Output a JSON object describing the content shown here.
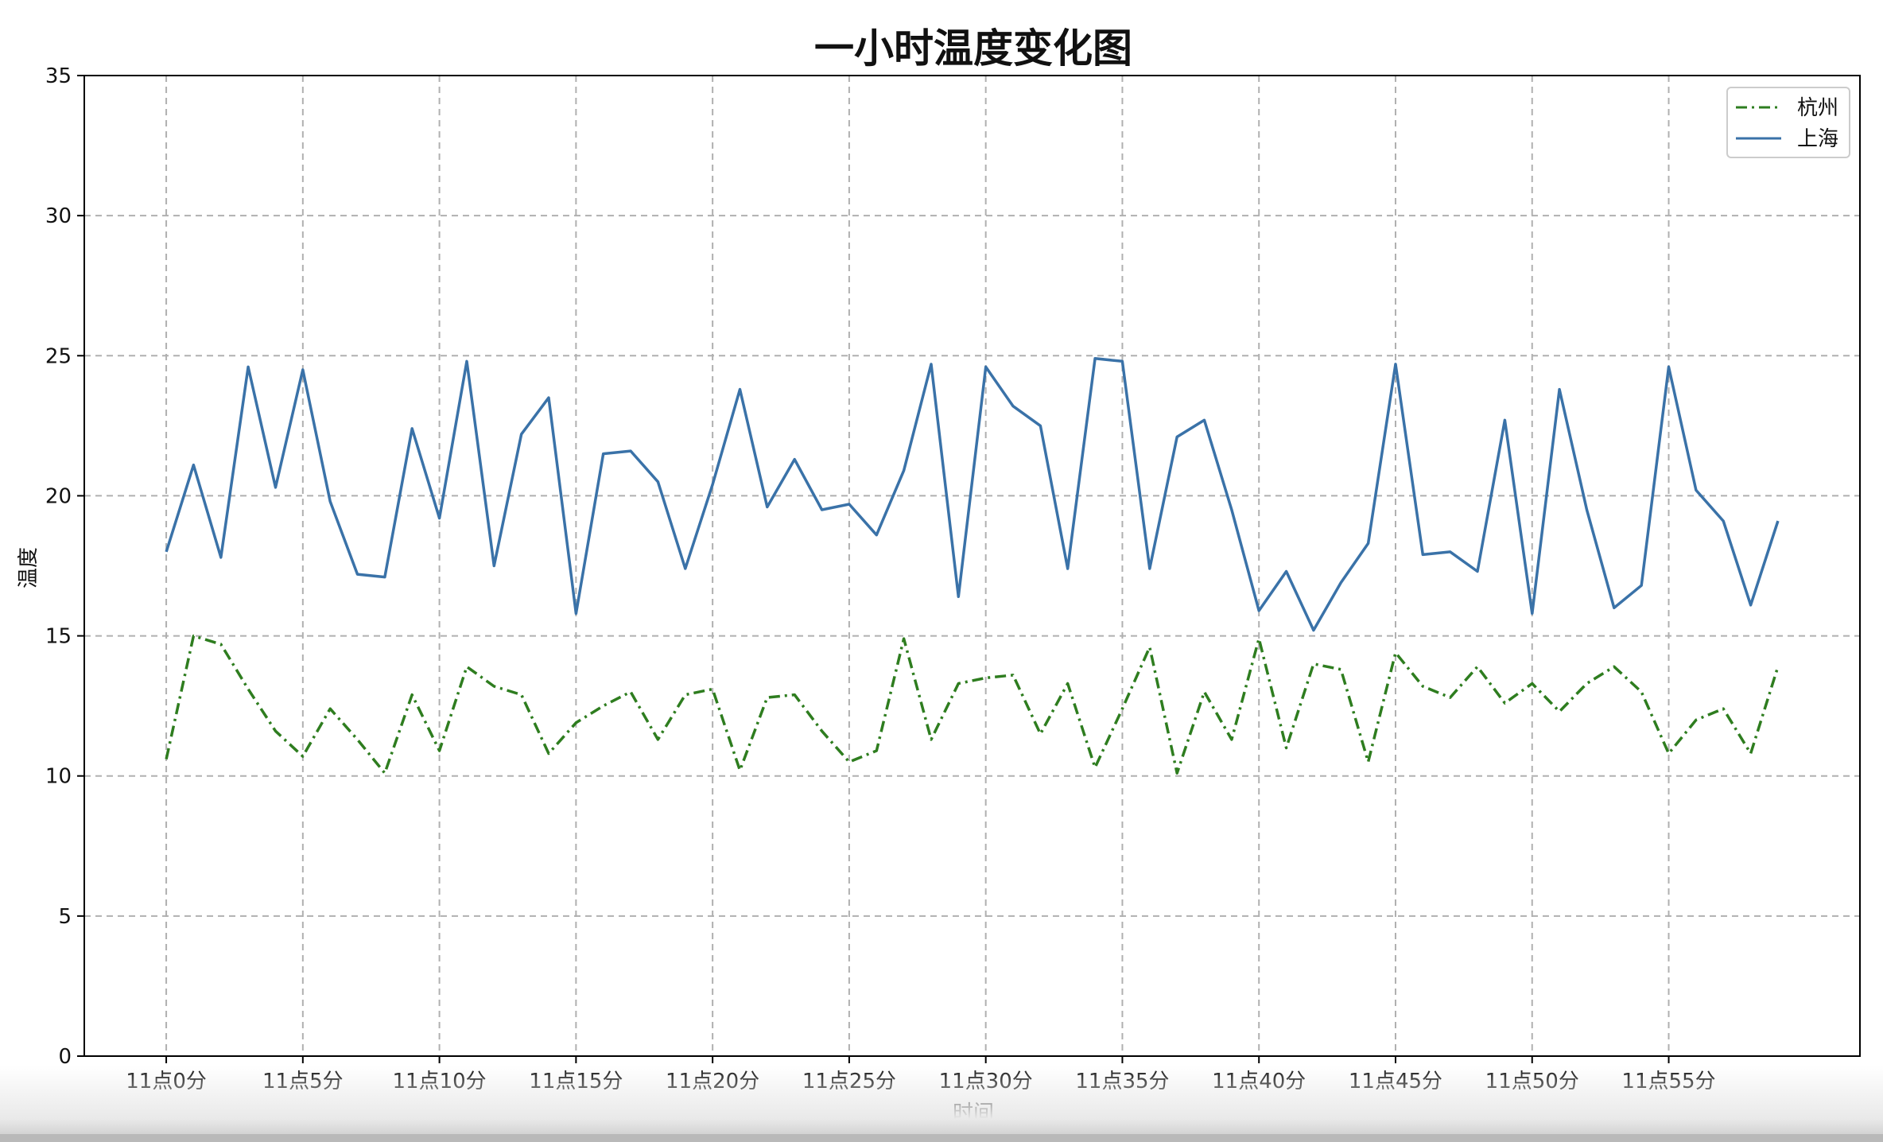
{
  "chart_data": {
    "type": "line",
    "title": "一小时温度变化图",
    "xlabel": "时间",
    "ylabel": "温度",
    "ylim": [
      0,
      35
    ],
    "yticks": [
      0,
      5,
      10,
      15,
      20,
      25,
      30,
      35
    ],
    "xlim": [
      -3,
      62
    ],
    "x": [
      0,
      1,
      2,
      3,
      4,
      5,
      6,
      7,
      8,
      9,
      10,
      11,
      12,
      13,
      14,
      15,
      16,
      17,
      18,
      19,
      20,
      21,
      22,
      23,
      24,
      25,
      26,
      27,
      28,
      29,
      30,
      31,
      32,
      33,
      34,
      35,
      36,
      37,
      38,
      39,
      40,
      41,
      42,
      43,
      44,
      45,
      46,
      47,
      48,
      49,
      50,
      51,
      52,
      53,
      54,
      55,
      56,
      57,
      58,
      59
    ],
    "xticks": [
      0,
      5,
      10,
      15,
      20,
      25,
      30,
      35,
      40,
      45,
      50,
      55
    ],
    "xtick_labels": [
      "11点0分",
      "11点5分",
      "11点10分",
      "11点15分",
      "11点20分",
      "11点25分",
      "11点30分",
      "11点35分",
      "11点40分",
      "11点45分",
      "11点50分",
      "11点55分"
    ],
    "grid": true,
    "legend": "top-right",
    "series": [
      {
        "name": "杭州",
        "color": "#2e7d1f",
        "linestyle": "dashdot",
        "values": [
          10.6,
          15.0,
          14.7,
          13.1,
          11.6,
          10.7,
          12.4,
          11.3,
          10.1,
          12.9,
          10.9,
          13.9,
          13.2,
          12.9,
          10.8,
          11.9,
          12.5,
          13.0,
          11.3,
          12.9,
          13.1,
          10.2,
          12.8,
          12.9,
          11.6,
          10.5,
          10.9,
          14.9,
          11.3,
          13.3,
          13.5,
          13.6,
          11.5,
          13.3,
          10.3,
          12.4,
          14.6,
          10.1,
          13.0,
          11.3,
          14.9,
          11.0,
          14.0,
          13.8,
          10.5,
          14.4,
          13.2,
          12.8,
          13.9,
          12.6,
          13.3,
          12.3,
          13.3,
          13.9,
          13.0,
          10.8,
          12.0,
          12.4,
          10.8,
          13.9
        ]
      },
      {
        "name": "上海",
        "color": "#3a72a8",
        "linestyle": "solid",
        "values": [
          18.0,
          21.1,
          17.8,
          24.6,
          20.3,
          24.5,
          19.8,
          17.2,
          17.1,
          22.4,
          19.2,
          24.8,
          17.5,
          22.2,
          23.5,
          15.8,
          21.5,
          21.6,
          20.5,
          17.4,
          20.4,
          23.8,
          19.6,
          21.3,
          19.5,
          19.7,
          18.6,
          20.9,
          24.7,
          16.4,
          24.6,
          23.2,
          22.5,
          17.4,
          24.9,
          24.8,
          17.4,
          22.1,
          22.7,
          19.5,
          15.9,
          17.3,
          15.2,
          16.9,
          18.3,
          24.7,
          17.9,
          18.0,
          17.3,
          22.7,
          15.8,
          23.8,
          19.5,
          16.0,
          16.8,
          24.6,
          20.2,
          19.1,
          16.1,
          19.1
        ]
      }
    ]
  }
}
